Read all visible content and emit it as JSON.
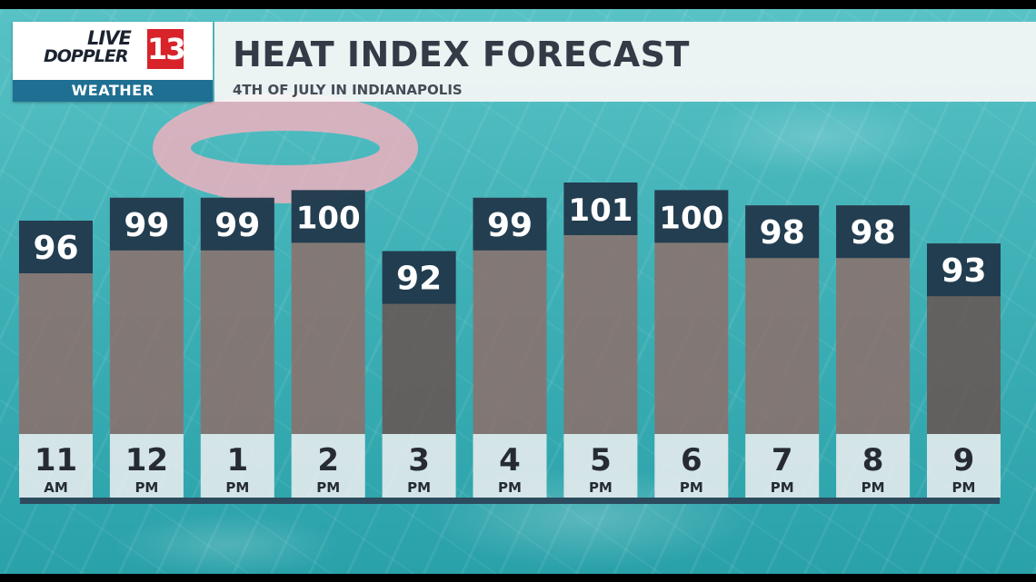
{
  "branding": {
    "logo_live": "LIVE",
    "logo_doppler": "DOPPLER",
    "logo_number": "13",
    "logo_weather": "WEATHER"
  },
  "header": {
    "title": "HEAT INDEX FORECAST",
    "subtitle": "4TH OF JULY IN INDIANAPOLIS"
  },
  "colors": {
    "bar_fill": "#8e6e6a",
    "bar_fill_cool": "#6a5350",
    "value_box": "#1c3a4e",
    "time_box": "#e6ebed",
    "baseline": "#2c4b5e"
  },
  "chart_data": {
    "type": "bar",
    "title": "HEAT INDEX FORECAST",
    "subtitle": "4TH OF JULY IN INDIANAPOLIS",
    "categories": [
      "11 AM",
      "12 PM",
      "1 PM",
      "2 PM",
      "3 PM",
      "4 PM",
      "5 PM",
      "6 PM",
      "7 PM",
      "8 PM",
      "9 PM"
    ],
    "hours": [
      "11",
      "12",
      "1",
      "2",
      "3",
      "4",
      "5",
      "6",
      "7",
      "8",
      "9"
    ],
    "periods": [
      "AM",
      "PM",
      "PM",
      "PM",
      "PM",
      "PM",
      "PM",
      "PM",
      "PM",
      "PM",
      "PM"
    ],
    "values": [
      96,
      99,
      99,
      100,
      92,
      99,
      101,
      100,
      98,
      98,
      93
    ],
    "ylim": [
      70,
      101
    ],
    "grid": false,
    "legend": "none"
  }
}
